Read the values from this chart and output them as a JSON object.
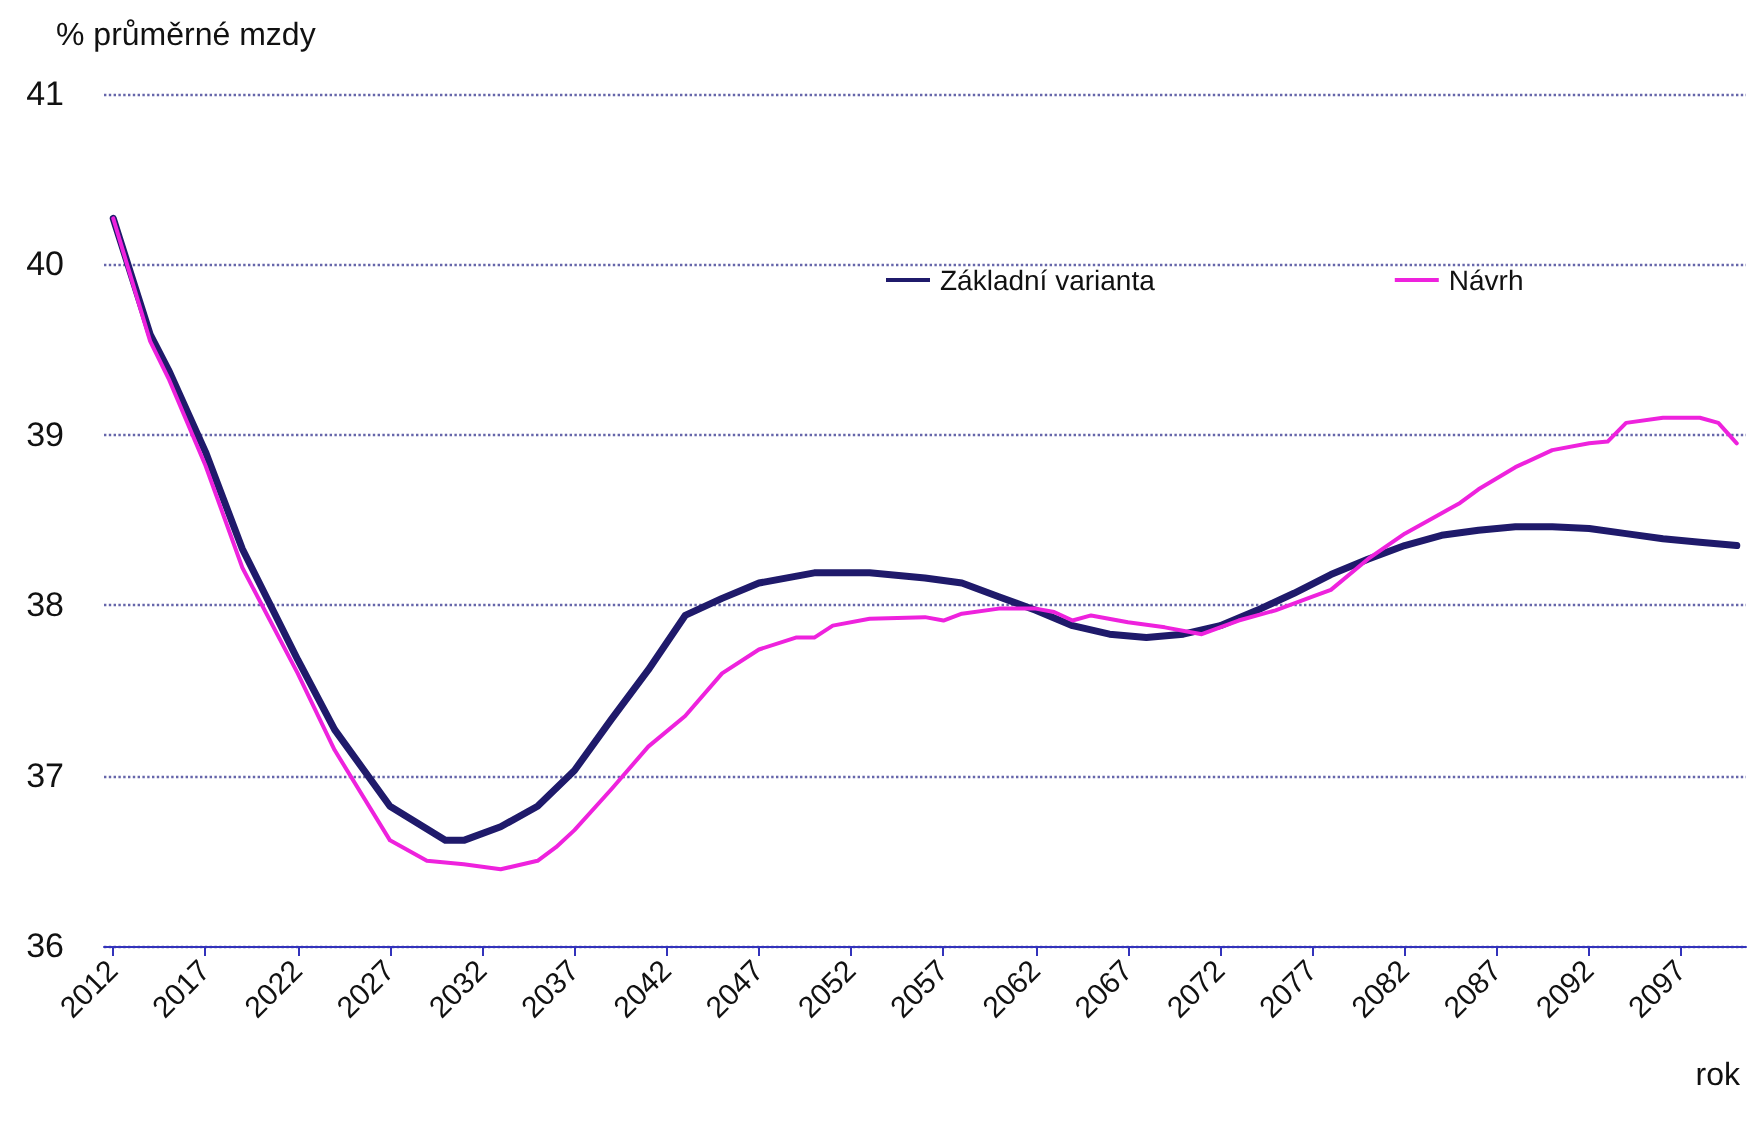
{
  "chart_data": {
    "type": "line",
    "ylabel": "% průměrné mzdy",
    "xlabel": "rok",
    "xlim": [
      2011.5,
      2100.5
    ],
    "xticks": [
      2012,
      2017,
      2022,
      2027,
      2032,
      2037,
      2042,
      2047,
      2052,
      2057,
      2062,
      2067,
      2072,
      2077,
      2082,
      2087,
      2092,
      2097
    ],
    "ylim": [
      36,
      41
    ],
    "yticks": [
      36,
      37,
      38,
      39,
      40,
      41
    ],
    "grid": "y",
    "legend": "top right",
    "marker": "none",
    "line_style": "solid",
    "series": [
      {
        "name": "Základní varianta",
        "color": "#1f1a6b",
        "x": [
          2012,
          2014,
          2015,
          2017,
          2019,
          2022,
          2024,
          2027,
          2030,
          2031,
          2033,
          2035,
          2037,
          2039,
          2041,
          2043,
          2045,
          2047,
          2050,
          2053,
          2056,
          2058,
          2060,
          2062,
          2064,
          2066,
          2068,
          2070,
          2072,
          2074,
          2076,
          2078,
          2080,
          2082,
          2084,
          2086,
          2088,
          2090,
          2092,
          2094,
          2096,
          2098,
          2100
        ],
        "values": [
          40.27,
          39.59,
          39.38,
          38.9,
          38.33,
          37.68,
          37.27,
          36.82,
          36.62,
          36.62,
          36.7,
          36.82,
          37.03,
          37.33,
          37.62,
          37.94,
          38.04,
          38.13,
          38.19,
          38.19,
          38.16,
          38.13,
          38.05,
          37.97,
          37.88,
          37.83,
          37.81,
          37.83,
          37.88,
          37.97,
          38.07,
          38.18,
          38.27,
          38.35,
          38.41,
          38.44,
          38.46,
          38.46,
          38.45,
          38.42,
          38.39,
          38.37,
          38.35
        ]
      },
      {
        "name": "Návrh",
        "color": "#ee22dd",
        "x": [
          2012,
          2014,
          2015,
          2017,
          2019,
          2022,
          2024,
          2027,
          2029,
          2031,
          2033,
          2035,
          2036,
          2037,
          2039,
          2041,
          2043,
          2045,
          2047,
          2049,
          2050,
          2051,
          2053,
          2056,
          2057,
          2058,
          2060,
          2062,
          2063,
          2064,
          2065,
          2067,
          2069,
          2071,
          2073,
          2075,
          2077,
          2078,
          2080,
          2082,
          2084,
          2085,
          2086,
          2088,
          2090,
          2092,
          2093,
          2094,
          2096,
          2098,
          2099,
          2100
        ],
        "values": [
          40.27,
          39.55,
          39.33,
          38.82,
          38.22,
          37.6,
          37.15,
          36.62,
          36.5,
          36.48,
          36.45,
          36.5,
          36.58,
          36.68,
          36.92,
          37.17,
          37.35,
          37.6,
          37.74,
          37.81,
          37.81,
          37.88,
          37.92,
          37.93,
          37.91,
          37.95,
          37.98,
          37.98,
          37.96,
          37.91,
          37.94,
          37.9,
          37.87,
          37.83,
          37.91,
          37.97,
          38.05,
          38.09,
          38.27,
          38.42,
          38.54,
          38.6,
          38.68,
          38.81,
          38.91,
          38.95,
          38.96,
          39.07,
          39.1,
          39.1,
          39.07,
          38.95
        ]
      }
    ]
  }
}
